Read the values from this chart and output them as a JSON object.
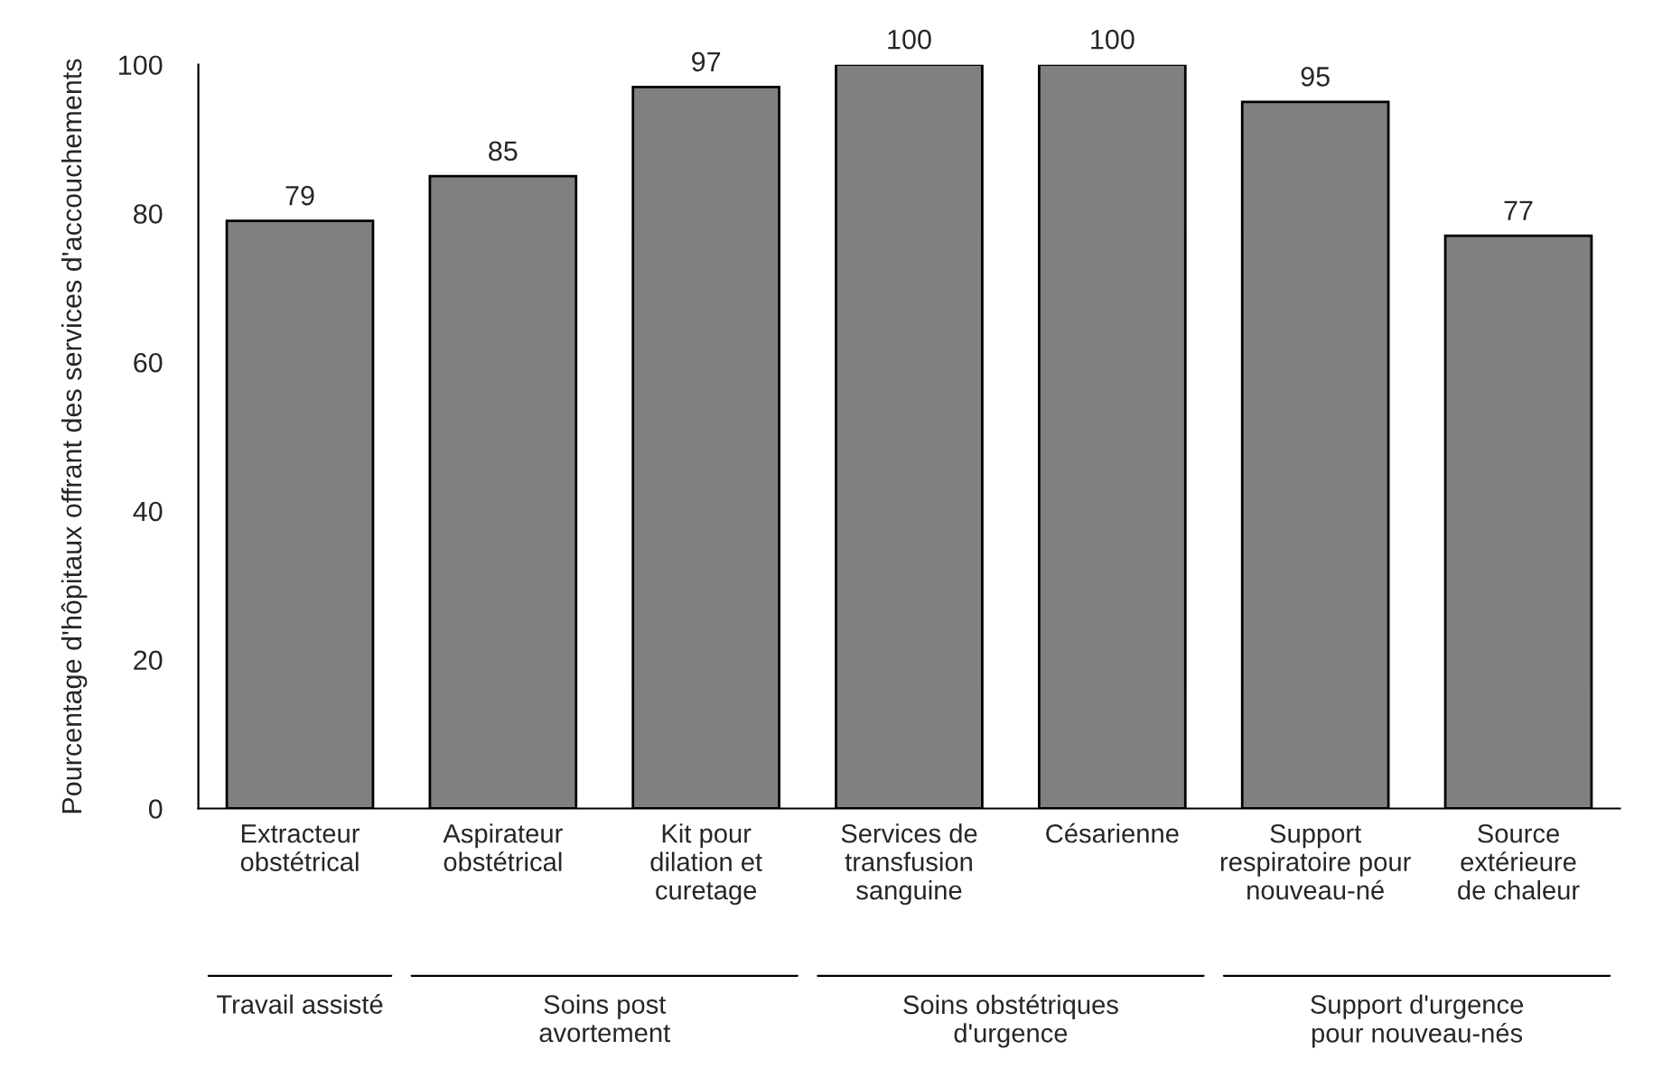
{
  "chart_data": {
    "type": "bar",
    "ylabel": "Pourcentage d'hôpitaux offrant des services d'accouchements",
    "categories": [
      "Extracteur\nobstétrical",
      "Aspirateur\nobstétrical",
      "Kit pour\ndilation et\ncuretage",
      "Services de\ntransfusion\nsanguine",
      "Césarienne",
      "Support\nrespiratoire pour\nnouveau-né",
      "Source\nextérieure\nde chaleur"
    ],
    "values": [
      79,
      85,
      97,
      100,
      100,
      95,
      77
    ],
    "color": "#808080",
    "ylim": [
      0,
      100
    ],
    "yticks": [
      0,
      20,
      40,
      60,
      80,
      100
    ],
    "data_labels": true,
    "grid": false,
    "legend": false,
    "annotations": [
      "Travail assisté",
      "Soins post\navortement",
      "Soins obstétriques\nd'urgence",
      "Support d'urgence\npour nouveau-nés"
    ]
  }
}
